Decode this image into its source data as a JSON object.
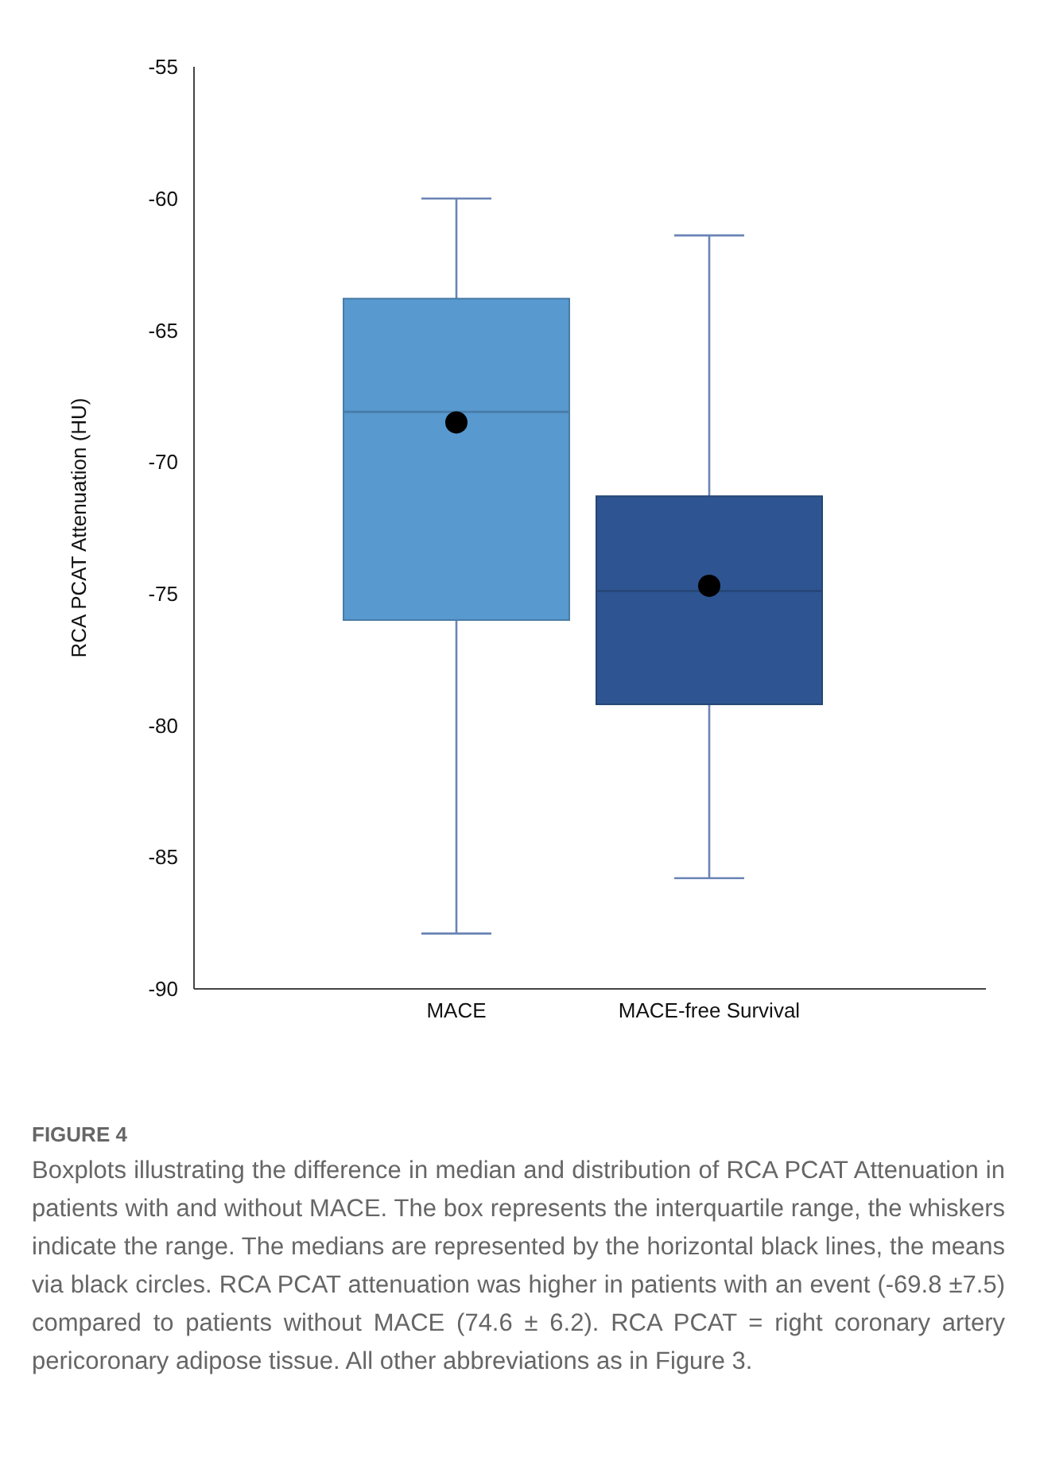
{
  "chart_data": {
    "type": "box",
    "ylabel": "RCA PCAT Attenuation (HU)",
    "categories": [
      "MACE",
      "MACE-free Survival"
    ],
    "colors": [
      "#5899cf",
      "#2e5591"
    ],
    "boxes": [
      {
        "low": -87.9,
        "q1": -76.0,
        "median": -68.1,
        "q3": -63.8,
        "high": -60.0,
        "mean": -68.5
      },
      {
        "low": -85.8,
        "q1": -79.2,
        "median": -74.9,
        "q3": -71.3,
        "high": -61.4,
        "mean": -74.7
      }
    ],
    "ylim": [
      -90,
      -55
    ],
    "yticks": [
      -90,
      -85,
      -80,
      -75,
      -70,
      -65,
      -60,
      -55
    ],
    "marker": "circle",
    "grid": false,
    "annotations": [
      "FIGURE 4",
      "Boxplots illustrating the difference in median and distribution of RCA PCAT Attenuation in patients with and without MACE. The box represents the interquartile range, the whiskers indicate the range. The medians are represented by the horizontal black lines, the means via black circles. RCA PCAT attenuation was higher in patients with an event (-69.8 ±7.5) compared to patients without MACE (74.6 ± 6.2). RCA PCAT = right coronary artery pericoronary adipose tissue. All other abbreviations as in Figure 3."
    ]
  }
}
